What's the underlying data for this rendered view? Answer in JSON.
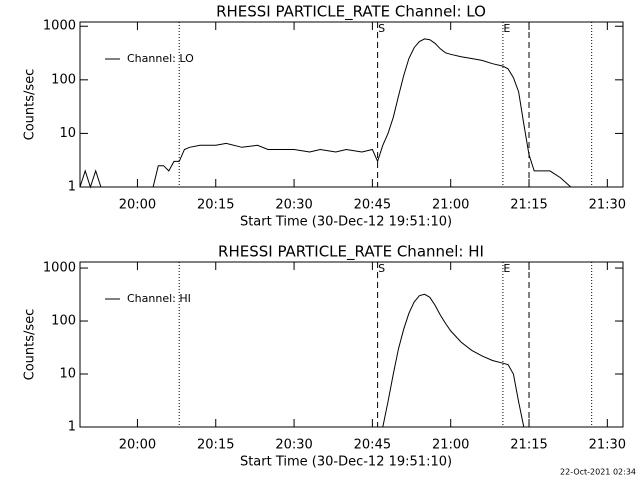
{
  "chart_data": [
    {
      "type": "line",
      "title": "RHESSI PARTICLE_RATE Channel: LO",
      "xlabel": "Start Time (30-Dec-12 19:51:10)",
      "ylabel": "Counts/sec",
      "log_y": true,
      "xlim": [
        "19:49",
        "21:33"
      ],
      "ylim": [
        1,
        1200
      ],
      "xticks": [
        "20:00",
        "20:15",
        "20:30",
        "20:45",
        "21:00",
        "21:15",
        "21:30"
      ],
      "yticks": [
        1,
        10,
        100,
        1000
      ],
      "vlines": [
        {
          "x": "20:08",
          "style": "dotted"
        },
        {
          "x": "20:46",
          "style": "dashed"
        },
        {
          "x": "21:10",
          "style": "dotted"
        },
        {
          "x": "21:15",
          "style": "dashed"
        },
        {
          "x": "21:27",
          "style": "dotted"
        }
      ],
      "markers": [
        {
          "x": "20:46",
          "label": "S"
        },
        {
          "x": "21:10",
          "label": "E"
        }
      ],
      "series": [
        {
          "name": "Channel: LO",
          "color": "#000000",
          "x": [
            "19:49",
            "19:50",
            "19:51",
            "19:52",
            "19:53",
            "20:03",
            "20:04",
            "20:05",
            "20:06",
            "20:07",
            "20:08",
            "20:09",
            "20:10",
            "20:12",
            "20:15",
            "20:17",
            "20:20",
            "20:23",
            "20:25",
            "20:28",
            "20:30",
            "20:33",
            "20:35",
            "20:38",
            "20:40",
            "20:43",
            "20:45",
            "20:46",
            "20:47",
            "20:48",
            "20:49",
            "20:50",
            "20:51",
            "20:52",
            "20:53",
            "20:54",
            "20:55",
            "20:56",
            "20:57",
            "20:58",
            "20:59",
            "21:00",
            "21:02",
            "21:04",
            "21:06",
            "21:08",
            "21:10",
            "21:11",
            "21:12",
            "21:13",
            "21:14",
            "21:15",
            "21:16",
            "21:17",
            "21:19",
            "21:21",
            "21:23",
            "21:25",
            "21:26"
          ],
          "values": [
            1,
            2,
            1,
            2,
            1,
            1,
            2.5,
            2.5,
            2,
            3,
            3,
            5,
            5.5,
            6,
            6,
            6.5,
            5.5,
            6,
            5,
            5,
            5,
            4.5,
            5,
            4.5,
            5,
            4.5,
            5,
            3,
            6,
            10,
            20,
            50,
            120,
            250,
            400,
            520,
            580,
            560,
            480,
            380,
            320,
            300,
            270,
            250,
            230,
            200,
            180,
            160,
            110,
            60,
            15,
            4,
            2,
            2,
            2,
            1.5,
            1,
            1,
            1
          ]
        }
      ]
    },
    {
      "type": "line",
      "title": "RHESSI PARTICLE_RATE Channel: HI",
      "xlabel": "Start Time (30-Dec-12 19:51:10)",
      "ylabel": "Counts/sec",
      "log_y": true,
      "xlim": [
        "19:49",
        "21:33"
      ],
      "ylim": [
        1,
        1300
      ],
      "xticks": [
        "20:00",
        "20:15",
        "20:30",
        "20:45",
        "21:00",
        "21:15",
        "21:30"
      ],
      "yticks": [
        1,
        10,
        100,
        1000
      ],
      "vlines": [
        {
          "x": "20:08",
          "style": "dotted"
        },
        {
          "x": "20:46",
          "style": "dashed"
        },
        {
          "x": "21:10",
          "style": "dotted"
        },
        {
          "x": "21:15",
          "style": "dashed"
        },
        {
          "x": "21:27",
          "style": "dotted"
        }
      ],
      "markers": [
        {
          "x": "20:46",
          "label": "S"
        },
        {
          "x": "21:10",
          "label": "E"
        }
      ],
      "series": [
        {
          "name": "Channel: HI",
          "color": "#000000",
          "x": [
            "20:47",
            "20:48",
            "20:49",
            "20:50",
            "20:51",
            "20:52",
            "20:53",
            "20:54",
            "20:55",
            "20:56",
            "20:57",
            "20:58",
            "20:59",
            "21:00",
            "21:02",
            "21:04",
            "21:06",
            "21:08",
            "21:10",
            "21:11",
            "21:12",
            "21:13",
            "21:14"
          ],
          "values": [
            1,
            3,
            10,
            30,
            70,
            140,
            230,
            300,
            320,
            280,
            200,
            130,
            90,
            65,
            40,
            28,
            22,
            18,
            16,
            15,
            10,
            3,
            1
          ]
        }
      ]
    }
  ],
  "footer": "22-Oct-2021 02:34"
}
